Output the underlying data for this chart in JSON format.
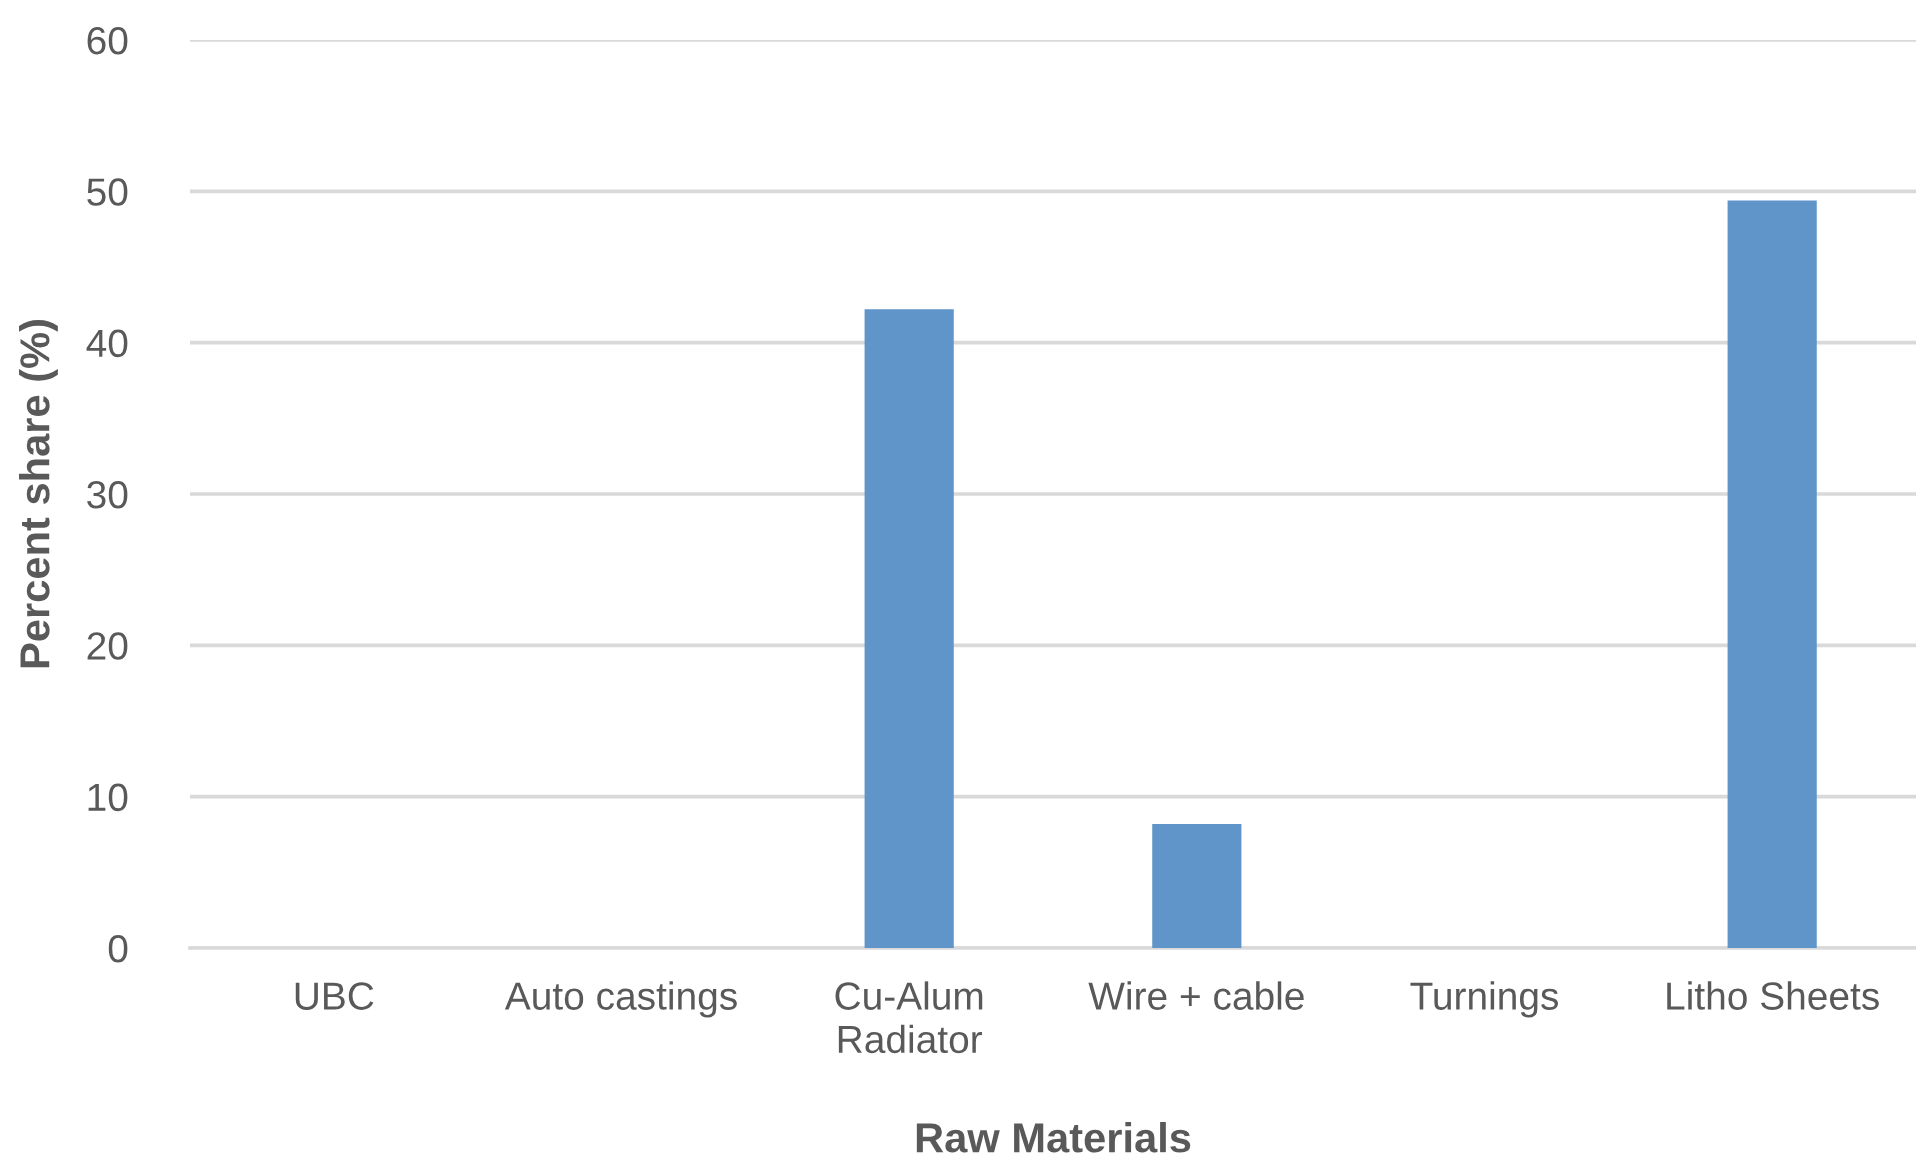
{
  "chart_data": {
    "type": "bar",
    "categories": [
      "UBC",
      "Auto castings",
      "Cu-Alum Radiator",
      "Wire + cable",
      "Turnings",
      "Litho Sheets"
    ],
    "values": [
      0,
      0,
      42.2,
      8.2,
      0,
      49.4
    ],
    "color": "#5f95c9",
    "xlabel": "Raw Materials",
    "ylabel": "Percent share (%)",
    "ylim": [
      0,
      60
    ],
    "yticks": [
      0,
      10,
      20,
      30,
      40,
      50,
      60
    ],
    "grid": "y",
    "legend": false
  }
}
